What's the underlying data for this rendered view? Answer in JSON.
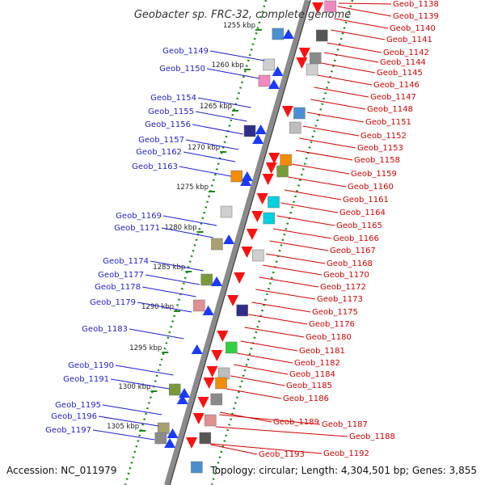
{
  "title": "Geobacter sp. FRC-32, complete genome",
  "footer": {
    "accession": "Accession: NC_011979",
    "topology": "Topology: circular; Length: 4,304,501 bp; Genes: 3,855"
  },
  "colors": {
    "left_label": "#1f1fd6",
    "right_label": "#d40000",
    "backbone": "#8a8a8a",
    "kbp_tick": "#1a8a1a"
  },
  "kbp_ticks": [
    "1255 kbp",
    "1260 kbp",
    "1265 kbp",
    "1270 kbp",
    "1275 kbp",
    "1280 kbp",
    "1285 kbp",
    "1290 kbp",
    "1295 kbp",
    "1300 kbp",
    "1305 kbp"
  ],
  "left_labels": [
    "Geob_1149",
    "Geob_1150",
    "Geob_1154",
    "Geob_1155",
    "Geob_1156",
    "Geob_1157",
    "Geob_1162",
    "Geob_1163",
    "Geob_1169",
    "Geob_1171",
    "Geob_1174",
    "Geob_1177",
    "Geob_1178",
    "Geob_1179",
    "Geob_1183",
    "Geob_1190",
    "Geob_1191",
    "Geob_1195",
    "Geob_1196",
    "Geob_1197"
  ],
  "right_labels": [
    "Geob_1138",
    "Geob_1139",
    "Geob_1140",
    "Geob_1141",
    "Geob_1142",
    "Geob_1144",
    "Geob_1145",
    "Geob_1146",
    "Geob_1147",
    "Geob_1148",
    "Geob_1151",
    "Geob_1152",
    "Geob_1153",
    "Geob_1158",
    "Geob_1159",
    "Geob_1160",
    "Geob_1161",
    "Geob_1164",
    "Geob_1165",
    "Geob_1166",
    "Geob_1167",
    "Geob_1168",
    "Geob_1170",
    "Geob_1172",
    "Geob_1173",
    "Geob_1175",
    "Geob_1176",
    "Geob_1180",
    "Geob_1181",
    "Geob_1182",
    "Geob_1184",
    "Geob_1185",
    "Geob_1186",
    "Geob_1189",
    "Geob_1187",
    "Geob_1188",
    "Geob_1193",
    "Geob_1192"
  ]
}
